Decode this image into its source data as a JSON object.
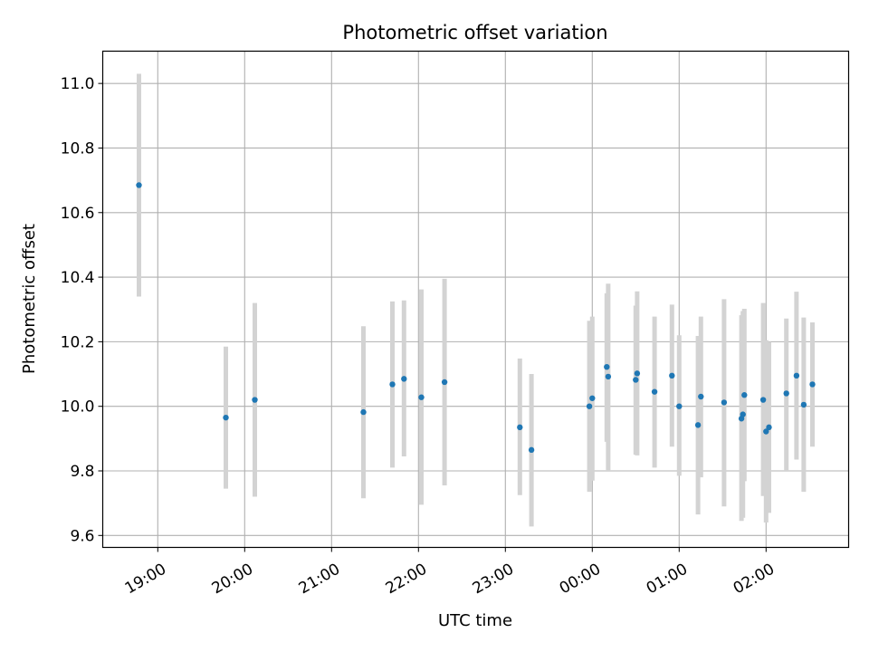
{
  "chart_data": {
    "type": "scatter",
    "title": "Photometric offset variation",
    "xlabel": "UTC time",
    "ylabel": "Photometric offset",
    "x_axis_type": "time",
    "xlim": [
      "18:22",
      "02:57"
    ],
    "ylim": [
      9.563,
      11.1
    ],
    "grid": true,
    "x_ticks": [
      "19:00",
      "20:00",
      "21:00",
      "22:00",
      "23:00",
      "00:00",
      "01:00",
      "02:00"
    ],
    "y_ticks": [
      "9.6",
      "9.8",
      "10.0",
      "10.2",
      "10.4",
      "10.6",
      "10.8",
      "11.0"
    ],
    "marker_color": "#1f77b4",
    "errorbar_color": "#d3d3d3",
    "series": [
      {
        "points": [
          {
            "x": "18:47",
            "y": 10.685,
            "ylo": 10.34,
            "yhi": 11.03
          },
          {
            "x": "19:47",
            "y": 9.965,
            "ylo": 9.745,
            "yhi": 10.185
          },
          {
            "x": "20:07",
            "y": 10.02,
            "ylo": 9.72,
            "yhi": 10.32
          },
          {
            "x": "21:22",
            "y": 9.982,
            "ylo": 9.715,
            "yhi": 10.248
          },
          {
            "x": "21:42",
            "y": 10.068,
            "ylo": 9.81,
            "yhi": 10.325
          },
          {
            "x": "21:50",
            "y": 10.085,
            "ylo": 9.845,
            "yhi": 10.328
          },
          {
            "x": "22:02",
            "y": 10.028,
            "ylo": 9.695,
            "yhi": 10.362
          },
          {
            "x": "22:18",
            "y": 10.075,
            "ylo": 9.755,
            "yhi": 10.395
          },
          {
            "x": "23:10",
            "y": 9.935,
            "ylo": 9.725,
            "yhi": 10.148
          },
          {
            "x": "23:18",
            "y": 9.865,
            "ylo": 9.628,
            "yhi": 10.1
          },
          {
            "x": "23:58",
            "y": 10.0,
            "ylo": 9.735,
            "yhi": 10.265
          },
          {
            "x": "00:00",
            "y": 10.025,
            "ylo": 9.77,
            "yhi": 10.278
          },
          {
            "x": "00:10",
            "y": 10.122,
            "ylo": 9.89,
            "yhi": 10.35
          },
          {
            "x": "00:11",
            "y": 10.092,
            "ylo": 9.8,
            "yhi": 10.38
          },
          {
            "x": "00:30",
            "y": 10.082,
            "ylo": 9.85,
            "yhi": 10.312
          },
          {
            "x": "00:31",
            "y": 10.102,
            "ylo": 9.848,
            "yhi": 10.356
          },
          {
            "x": "00:43",
            "y": 10.045,
            "ylo": 9.81,
            "yhi": 10.278
          },
          {
            "x": "00:55",
            "y": 10.095,
            "ylo": 9.875,
            "yhi": 10.315
          },
          {
            "x": "01:00",
            "y": 10.0,
            "ylo": 9.785,
            "yhi": 10.22
          },
          {
            "x": "01:13",
            "y": 9.942,
            "ylo": 9.665,
            "yhi": 10.218
          },
          {
            "x": "01:15",
            "y": 10.03,
            "ylo": 9.78,
            "yhi": 10.278
          },
          {
            "x": "01:31",
            "y": 10.012,
            "ylo": 9.69,
            "yhi": 10.332
          },
          {
            "x": "01:43",
            "y": 9.962,
            "ylo": 9.645,
            "yhi": 10.282
          },
          {
            "x": "01:44",
            "y": 9.975,
            "ylo": 9.655,
            "yhi": 10.295
          },
          {
            "x": "01:45",
            "y": 10.035,
            "ylo": 9.768,
            "yhi": 10.302
          },
          {
            "x": "01:58",
            "y": 10.02,
            "ylo": 9.722,
            "yhi": 10.32
          },
          {
            "x": "02:00",
            "y": 9.922,
            "ylo": 9.64,
            "yhi": 10.205
          },
          {
            "x": "02:02",
            "y": 9.935,
            "ylo": 9.67,
            "yhi": 10.2
          },
          {
            "x": "02:14",
            "y": 10.04,
            "ylo": 9.8,
            "yhi": 10.272
          },
          {
            "x": "02:21",
            "y": 10.095,
            "ylo": 9.835,
            "yhi": 10.355
          },
          {
            "x": "02:26",
            "y": 10.005,
            "ylo": 9.735,
            "yhi": 10.275
          },
          {
            "x": "02:32",
            "y": 10.068,
            "ylo": 9.875,
            "yhi": 10.26
          }
        ]
      }
    ]
  }
}
